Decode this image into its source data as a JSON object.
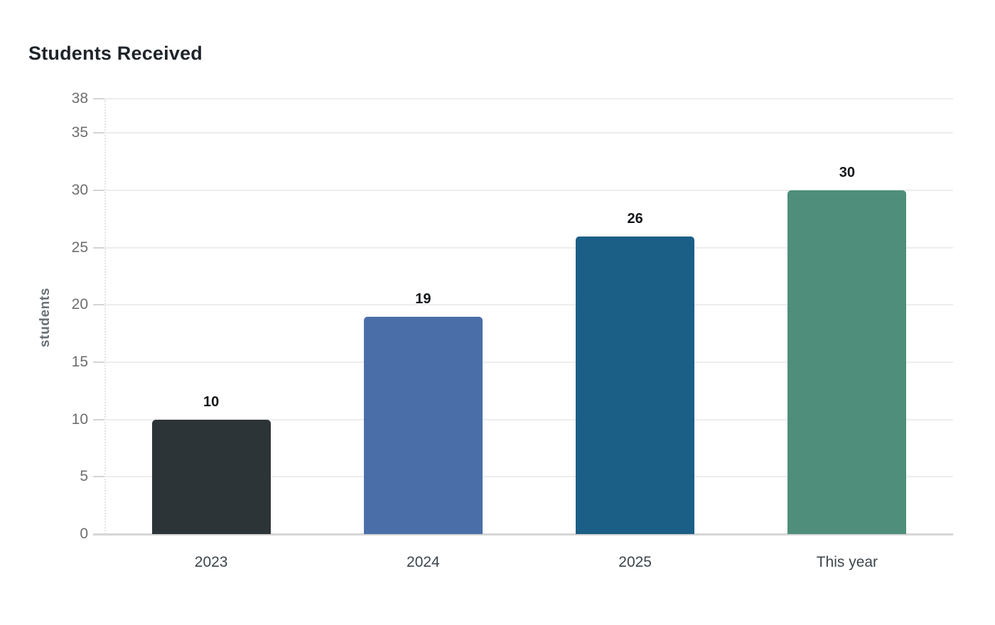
{
  "page": {
    "background": "#ffffff"
  },
  "chart_data": {
    "type": "bar",
    "title": "Students Received",
    "xlabel": "",
    "ylabel": "students",
    "categories": [
      "2023",
      "2024",
      "2025",
      "This year"
    ],
    "values": [
      10,
      19,
      26,
      30
    ],
    "value_labels": [
      "10",
      "19",
      "26",
      "30"
    ],
    "bar_colors": [
      "#2d3438",
      "#4a6ea8",
      "#1b5f86",
      "#4e8e7a"
    ],
    "yticks": [
      0,
      5,
      10,
      15,
      20,
      25,
      30,
      35,
      38
    ],
    "ylim": [
      0,
      38
    ],
    "grid": "horizontal",
    "legend_position": "none",
    "colors": {
      "gridline": "#ededed",
      "baseline": "#d6d6d6",
      "tick_label": "#6e6e6e",
      "x_label": "#3d454c",
      "value_label": "#14181b",
      "title": "#1f242a",
      "y_axis_label": "#697077"
    }
  }
}
